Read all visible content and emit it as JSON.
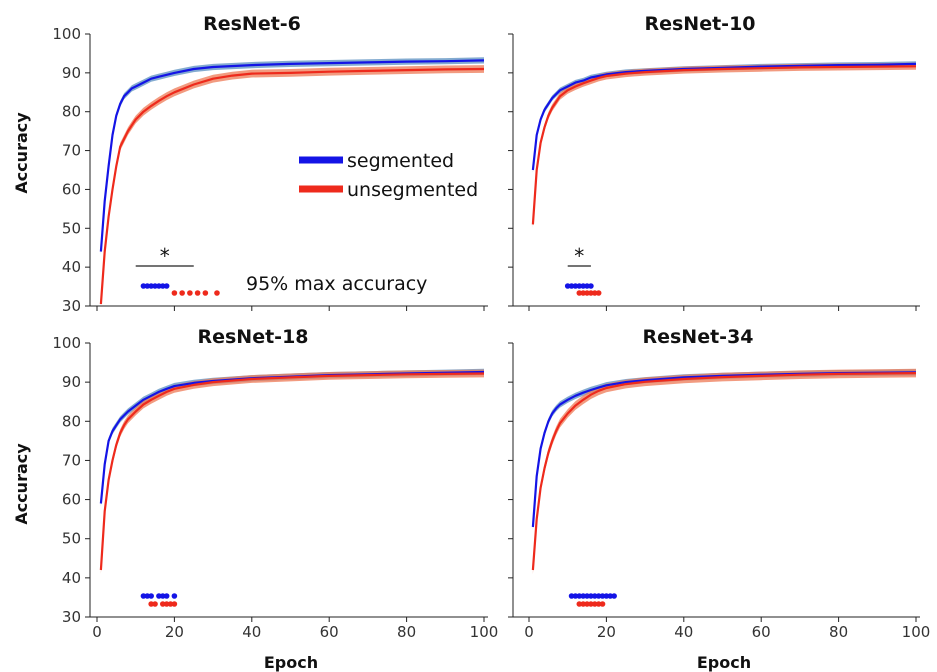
{
  "chart_data": [
    {
      "type": "line",
      "title": "ResNet-6",
      "xlabel": "",
      "ylabel": "Accuracy",
      "xlim": [
        0,
        100
      ],
      "ylim": [
        30,
        100
      ],
      "xticks": [
        0,
        20,
        40,
        60,
        80,
        100
      ],
      "yticks": [
        30,
        40,
        50,
        60,
        70,
        80,
        90,
        100
      ],
      "xtick_labels_shown": false,
      "ytick_labels_shown": true,
      "legend": {
        "position": "center-right",
        "entries": [
          "segmented",
          "unsegmented"
        ]
      },
      "annotation": "95% max accuracy",
      "significance_mark": "*",
      "significance_bracket": [
        10,
        25
      ],
      "series": [
        {
          "name": "segmented",
          "color": "#1414e6",
          "band_color": "#5a8fc0",
          "x": [
            1,
            2,
            3,
            4,
            5,
            6,
            7,
            8,
            9,
            10,
            12,
            14,
            16,
            18,
            20,
            25,
            30,
            40,
            50,
            60,
            70,
            80,
            90,
            100
          ],
          "y": [
            44,
            57,
            66,
            74,
            79,
            82,
            84,
            85,
            86,
            86.5,
            87.5,
            88.5,
            89,
            89.5,
            90,
            91,
            91.5,
            92,
            92.3,
            92.5,
            92.7,
            92.9,
            93,
            93.2
          ],
          "band": 0.8,
          "max95_epochs": [
            12,
            13,
            14,
            15,
            16,
            17,
            18
          ]
        },
        {
          "name": "unsegmented",
          "color": "#ee2a1c",
          "band_color": "#ee7a55",
          "x": [
            1,
            2,
            3,
            4,
            5,
            6,
            7,
            8,
            9,
            10,
            12,
            14,
            16,
            18,
            20,
            25,
            30,
            35,
            40,
            50,
            60,
            70,
            80,
            90,
            100
          ],
          "y": [
            30.5,
            44,
            53,
            60,
            66,
            71,
            73,
            75,
            76.5,
            78,
            80,
            81.5,
            82.8,
            84,
            85,
            87,
            88.5,
            89.3,
            89.8,
            90,
            90.3,
            90.5,
            90.7,
            90.9,
            91
          ],
          "band": 1.0,
          "max95_epochs": [
            20,
            22,
            24,
            26,
            28,
            31
          ]
        }
      ]
    },
    {
      "type": "line",
      "title": "ResNet-10",
      "xlabel": "",
      "ylabel": "",
      "xlim": [
        0,
        100
      ],
      "ylim": [
        30,
        100
      ],
      "xticks": [
        0,
        20,
        40,
        60,
        80,
        100
      ],
      "yticks": [
        30,
        40,
        50,
        60,
        70,
        80,
        90,
        100
      ],
      "xtick_labels_shown": false,
      "ytick_labels_shown": false,
      "significance_mark": "*",
      "significance_bracket": [
        10,
        16
      ],
      "series": [
        {
          "name": "segmented",
          "color": "#1414e6",
          "band_color": "#5a8fc0",
          "x": [
            1,
            2,
            3,
            4,
            5,
            6,
            7,
            8,
            10,
            12,
            14,
            16,
            18,
            20,
            25,
            30,
            40,
            50,
            60,
            70,
            80,
            90,
            100
          ],
          "y": [
            65,
            74,
            78,
            80.5,
            82,
            83.5,
            84.5,
            85.5,
            86.5,
            87.5,
            88,
            88.8,
            89.2,
            89.6,
            90.2,
            90.5,
            91,
            91.3,
            91.6,
            91.8,
            92,
            92.1,
            92.3
          ],
          "band": 0.7,
          "max95_epochs": [
            10,
            11,
            12,
            13,
            14,
            15,
            16
          ]
        },
        {
          "name": "unsegmented",
          "color": "#ee2a1c",
          "band_color": "#ee7a55",
          "x": [
            1,
            2,
            3,
            4,
            5,
            6,
            7,
            8,
            10,
            12,
            14,
            16,
            18,
            20,
            25,
            30,
            40,
            50,
            60,
            70,
            80,
            90,
            100
          ],
          "y": [
            51,
            65,
            72,
            76,
            79,
            81,
            82.5,
            84,
            85.5,
            86.5,
            87.3,
            88,
            88.7,
            89.2,
            89.8,
            90.2,
            90.7,
            91,
            91.2,
            91.4,
            91.5,
            91.6,
            91.7
          ],
          "band": 0.9,
          "max95_epochs": [
            13,
            14,
            15,
            16,
            17,
            18
          ]
        }
      ]
    },
    {
      "type": "line",
      "title": "ResNet-18",
      "xlabel": "Epoch",
      "ylabel": "Accuracy",
      "xlim": [
        0,
        100
      ],
      "ylim": [
        30,
        100
      ],
      "xticks": [
        0,
        20,
        40,
        60,
        80,
        100
      ],
      "yticks": [
        30,
        40,
        50,
        60,
        70,
        80,
        90,
        100
      ],
      "xtick_labels_shown": true,
      "ytick_labels_shown": true,
      "series": [
        {
          "name": "segmented",
          "color": "#1414e6",
          "band_color": "#5a8fc0",
          "x": [
            1,
            2,
            3,
            4,
            5,
            6,
            7,
            8,
            10,
            12,
            14,
            16,
            18,
            20,
            25,
            30,
            40,
            50,
            60,
            70,
            80,
            90,
            100
          ],
          "y": [
            59,
            69,
            75,
            77.5,
            79,
            80.5,
            81.5,
            82.5,
            84,
            85.5,
            86.5,
            87.5,
            88.3,
            89,
            89.8,
            90.3,
            91,
            91.4,
            91.8,
            92,
            92.2,
            92.4,
            92.6
          ],
          "band": 0.8,
          "max95_epochs": [
            12,
            13,
            14,
            16,
            17,
            18,
            20
          ]
        },
        {
          "name": "unsegmented",
          "color": "#ee2a1c",
          "band_color": "#ee7a55",
          "x": [
            1,
            2,
            3,
            4,
            5,
            6,
            7,
            8,
            10,
            12,
            14,
            16,
            18,
            20,
            25,
            30,
            40,
            50,
            60,
            70,
            80,
            90,
            100
          ],
          "y": [
            42,
            57,
            65,
            70,
            74,
            77,
            79,
            80.5,
            82.5,
            84.3,
            85.5,
            86.5,
            87.5,
            88.3,
            89.3,
            90,
            90.8,
            91.2,
            91.6,
            91.8,
            92,
            92.1,
            92.2
          ],
          "band": 1.0,
          "max95_epochs": [
            14,
            15,
            17,
            18,
            19,
            20
          ]
        }
      ]
    },
    {
      "type": "line",
      "title": "ResNet-34",
      "xlabel": "Epoch",
      "ylabel": "",
      "xlim": [
        0,
        100
      ],
      "ylim": [
        30,
        100
      ],
      "xticks": [
        0,
        20,
        40,
        60,
        80,
        100
      ],
      "yticks": [
        30,
        40,
        50,
        60,
        70,
        80,
        90,
        100
      ],
      "xtick_labels_shown": true,
      "ytick_labels_shown": false,
      "series": [
        {
          "name": "segmented",
          "color": "#1414e6",
          "band_color": "#5a8fc0",
          "x": [
            1,
            2,
            3,
            4,
            5,
            6,
            7,
            8,
            10,
            12,
            14,
            16,
            18,
            20,
            25,
            30,
            40,
            50,
            60,
            70,
            80,
            90,
            100
          ],
          "y": [
            53,
            66,
            73,
            77,
            80,
            82,
            83.3,
            84.3,
            85.5,
            86.5,
            87.3,
            88,
            88.6,
            89.2,
            90,
            90.5,
            91.2,
            91.6,
            91.9,
            92.1,
            92.3,
            92.4,
            92.5
          ],
          "band": 0.8,
          "max95_epochs": [
            11,
            12,
            13,
            14,
            15,
            16,
            17,
            18,
            19,
            20,
            21,
            22
          ]
        },
        {
          "name": "unsegmented",
          "color": "#ee2a1c",
          "band_color": "#ee7a55",
          "x": [
            1,
            2,
            3,
            4,
            5,
            6,
            7,
            8,
            10,
            12,
            14,
            16,
            18,
            20,
            25,
            30,
            40,
            50,
            60,
            70,
            80,
            90,
            100
          ],
          "y": [
            42,
            55,
            63,
            68,
            72,
            75,
            77.5,
            79.5,
            82,
            84,
            85.5,
            86.8,
            87.8,
            88.5,
            89.5,
            90.1,
            90.8,
            91.3,
            91.6,
            91.9,
            92.1,
            92.2,
            92.3
          ],
          "band": 1.1,
          "max95_epochs": [
            13,
            14,
            15,
            16,
            17,
            18,
            19
          ]
        }
      ]
    }
  ]
}
